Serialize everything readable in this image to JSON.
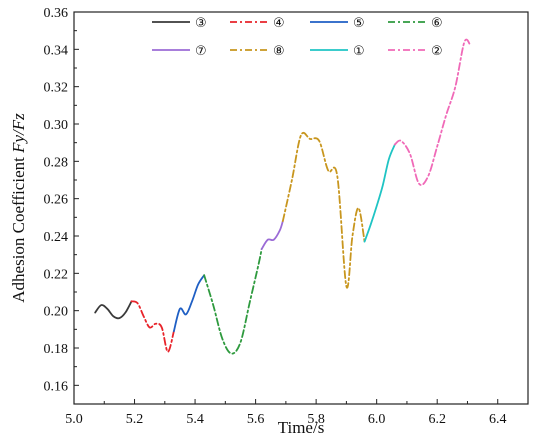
{
  "chart_data": {
    "type": "line",
    "xlabel": "Time/s",
    "ylabel": "Adhesion Coefficient ",
    "ylabel_italic": "Fy/Fz",
    "xlim": [
      5.0,
      6.5
    ],
    "ylim": [
      0.15,
      0.36
    ],
    "x_ticks": [
      "5.0",
      "5.2",
      "5.4",
      "5.6",
      "5.8",
      "6.0",
      "6.2",
      "6.4"
    ],
    "y_ticks": [
      "0.16",
      "0.18",
      "0.20",
      "0.22",
      "0.24",
      "0.26",
      "0.28",
      "0.30",
      "0.32",
      "0.34",
      "0.36"
    ],
    "legend_position": "top",
    "series": [
      {
        "name": "③",
        "color": "#3a3a3a",
        "style": "solid",
        "x": [
          5.07,
          5.09,
          5.11,
          5.13,
          5.15,
          5.17,
          5.19
        ],
        "y": [
          0.199,
          0.203,
          0.201,
          0.197,
          0.196,
          0.199,
          0.205
        ]
      },
      {
        "name": "④",
        "color": "#e8232a",
        "style": "dashdot",
        "x": [
          5.19,
          5.21,
          5.23,
          5.25,
          5.27,
          5.29,
          5.31,
          5.33
        ],
        "y": [
          0.205,
          0.204,
          0.197,
          0.191,
          0.193,
          0.191,
          0.178,
          0.189
        ]
      },
      {
        "name": "⑤",
        "color": "#1f5fc4",
        "style": "solid",
        "x": [
          5.33,
          5.35,
          5.37,
          5.39,
          5.41,
          5.43
        ],
        "y": [
          0.189,
          0.201,
          0.198,
          0.205,
          0.214,
          0.219
        ]
      },
      {
        "name": "⑥",
        "color": "#2e9a3e",
        "style": "dashdot",
        "x": [
          5.43,
          5.46,
          5.49,
          5.52,
          5.55,
          5.58,
          5.61,
          5.62
        ],
        "y": [
          0.219,
          0.203,
          0.185,
          0.177,
          0.183,
          0.204,
          0.225,
          0.233
        ]
      },
      {
        "name": "⑦",
        "color": "#9b6bd6",
        "style": "solid",
        "x": [
          5.62,
          5.64,
          5.66,
          5.68,
          5.69
        ],
        "y": [
          0.233,
          0.238,
          0.238,
          0.243,
          0.248
        ]
      },
      {
        "name": "⑧",
        "color": "#c8961e",
        "style": "dashdot",
        "x": [
          5.69,
          5.72,
          5.75,
          5.78,
          5.81,
          5.84,
          5.87,
          5.9,
          5.92,
          5.94,
          5.96
        ],
        "y": [
          0.248,
          0.27,
          0.294,
          0.292,
          0.291,
          0.275,
          0.272,
          0.213,
          0.24,
          0.255,
          0.237
        ]
      },
      {
        "name": "①",
        "color": "#1fc4c4",
        "style": "solid",
        "x": [
          5.96,
          5.98,
          6.0,
          6.02,
          6.04,
          6.06
        ],
        "y": [
          0.237,
          0.246,
          0.256,
          0.267,
          0.281,
          0.289
        ]
      },
      {
        "name": "②",
        "color": "#f06ab8",
        "style": "dashdot",
        "x": [
          6.06,
          6.08,
          6.11,
          6.14,
          6.17,
          6.2,
          6.23,
          6.26,
          6.29,
          6.31
        ],
        "y": [
          0.289,
          0.291,
          0.284,
          0.268,
          0.272,
          0.288,
          0.305,
          0.32,
          0.344,
          0.342
        ]
      }
    ]
  }
}
